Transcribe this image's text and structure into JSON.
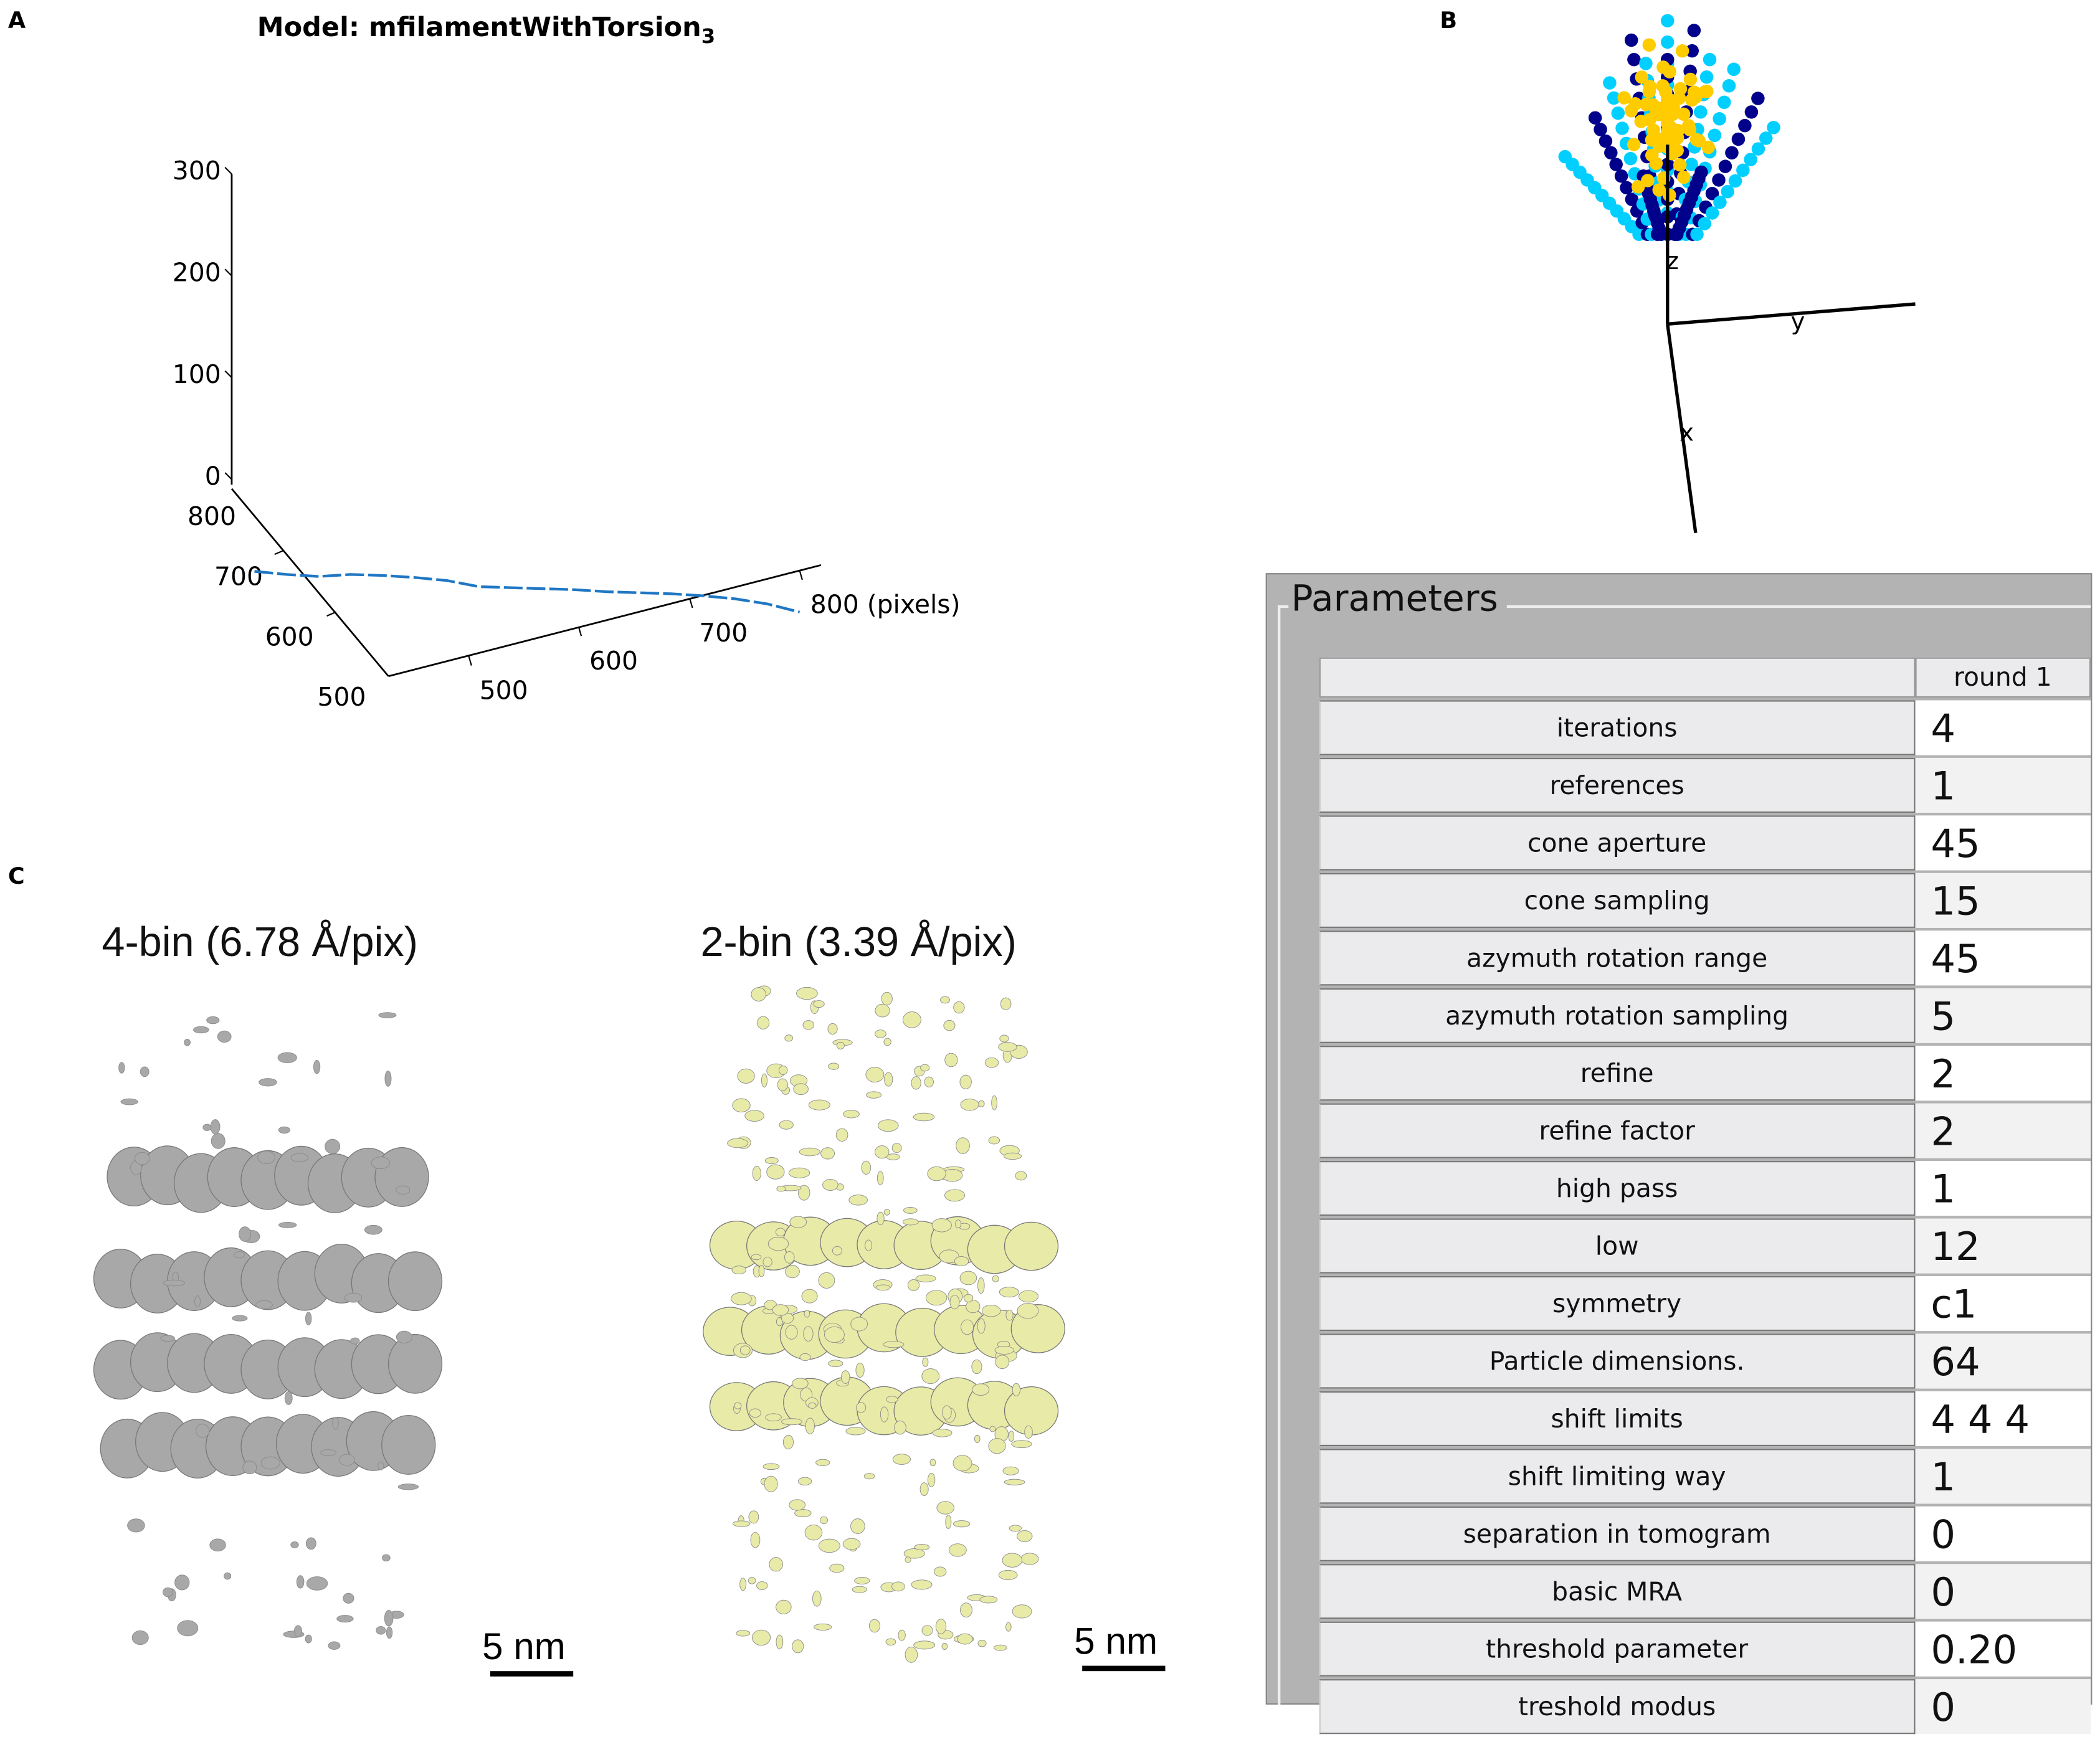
{
  "panels": {
    "a": "A",
    "b": "B",
    "c": "C"
  },
  "chart_data": [
    {
      "type": "line",
      "title": "Model: mfilamentWithTorsion",
      "title_subscript": "3",
      "z_ticks": [
        "300",
        "200",
        "100",
        "0"
      ],
      "depth_ticks": [
        "800",
        "700",
        "600",
        "500"
      ],
      "x_ticks": [
        "500",
        "600",
        "700",
        "800 (pixels)"
      ],
      "zlim": [
        0,
        300
      ],
      "series": [
        {
          "values": [
            128,
            125,
            123,
            125,
            124,
            122,
            119,
            113,
            112,
            111,
            110,
            108,
            107,
            106,
            104,
            101,
            96,
            88
          ]
        }
      ],
      "line_style": "dashed",
      "color": "#1f77c4",
      "grid": false
    }
  ],
  "panel_b": {
    "axis_labels": {
      "z": "z",
      "y": "y",
      "x": "x"
    },
    "colors": {
      "dark": "#00008b",
      "light": "#00cfff",
      "gold": "#ffcc00"
    }
  },
  "panel_c": {
    "left": {
      "title": "4-bin (6.78 Å/pix)",
      "scale": "5 nm",
      "color": "#a8a8a8"
    },
    "right": {
      "title": "2-bin (3.39 Å/pix)",
      "scale": "5 nm",
      "color": "#e8eaa8"
    }
  },
  "parameters": {
    "title": "Parameters",
    "column": "round 1",
    "rows": [
      {
        "label": "iterations",
        "value": "4"
      },
      {
        "label": "references",
        "value": "1"
      },
      {
        "label": "cone aperture",
        "value": "45"
      },
      {
        "label": "cone sampling",
        "value": "15"
      },
      {
        "label": "azymuth rotation range",
        "value": "45"
      },
      {
        "label": "azymuth rotation sampling",
        "value": "5"
      },
      {
        "label": "refine",
        "value": "2"
      },
      {
        "label": "refine factor",
        "value": "2"
      },
      {
        "label": "high pass",
        "value": "1"
      },
      {
        "label": "low",
        "value": "12"
      },
      {
        "label": "symmetry",
        "value": "c1"
      },
      {
        "label": "Particle dimensions.",
        "value": "64"
      },
      {
        "label": "shift limits",
        "value": "4 4 4"
      },
      {
        "label": "shift limiting way",
        "value": "1"
      },
      {
        "label": "separation in tomogram",
        "value": "0"
      },
      {
        "label": "basic MRA",
        "value": "0"
      },
      {
        "label": "threshold parameter",
        "value": " 0.20"
      },
      {
        "label": "treshold modus",
        "value": "0"
      }
    ]
  }
}
